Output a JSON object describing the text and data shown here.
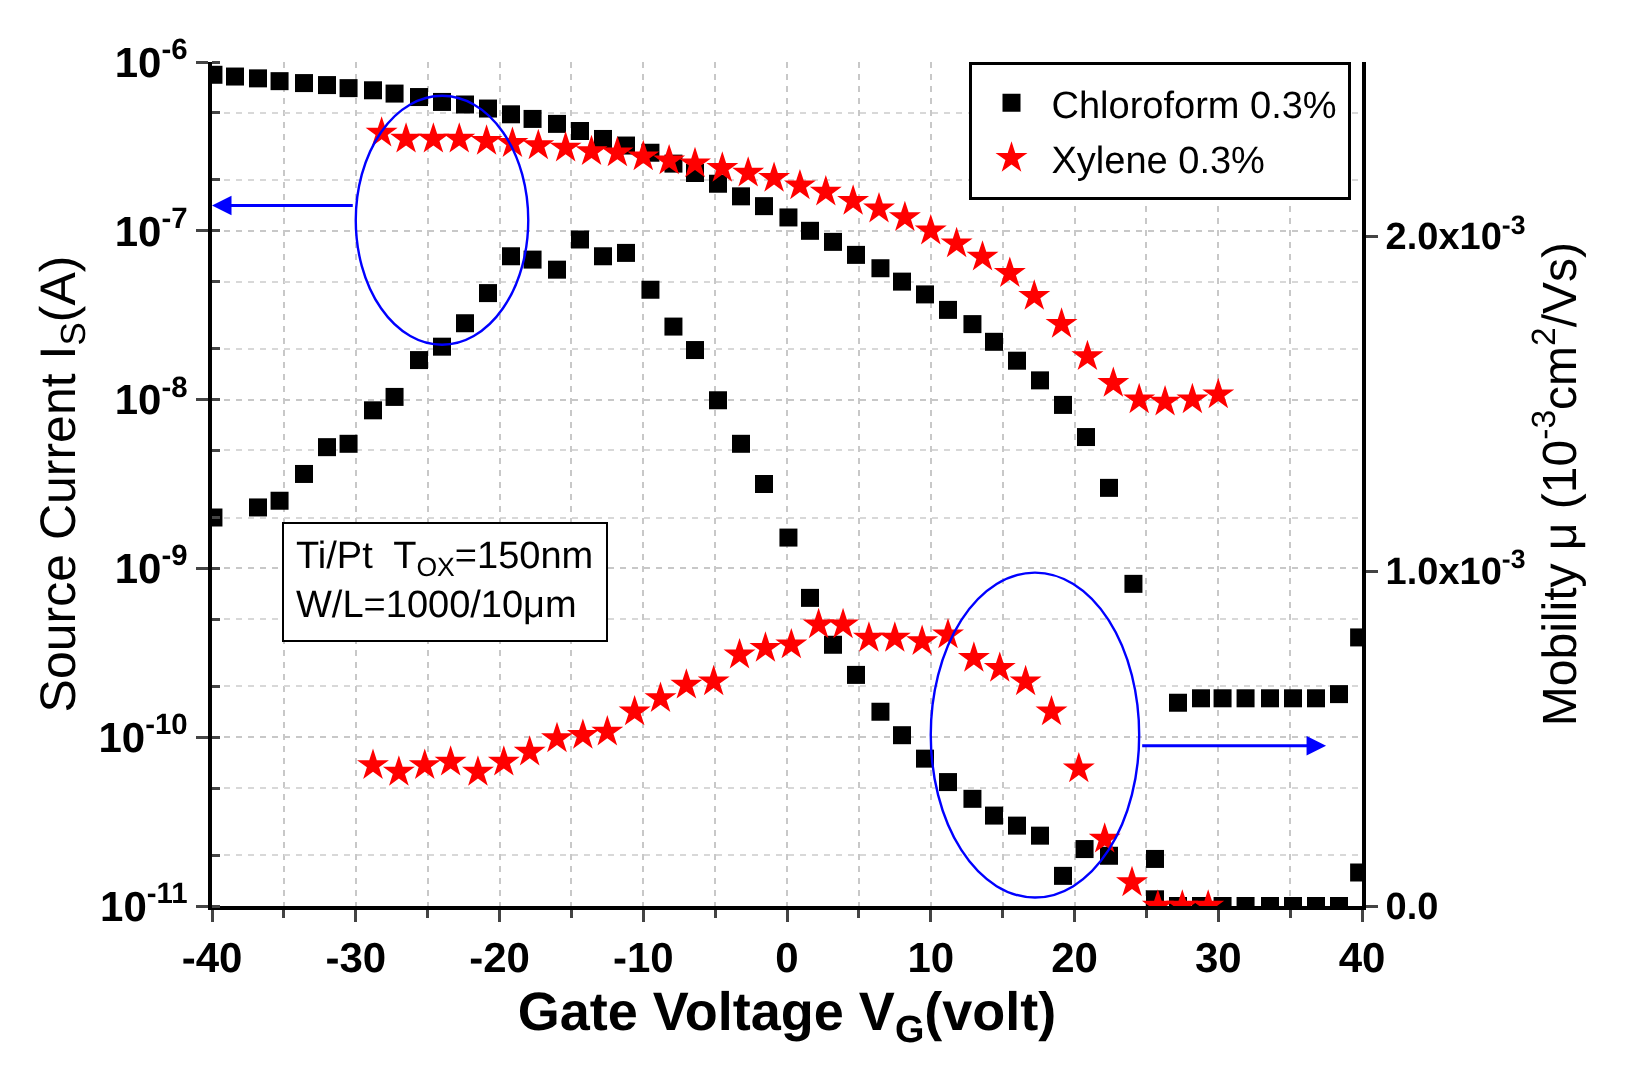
{
  "chart_data": {
    "type": "scatter",
    "xlabel": "Gate Voltage V$_{G}$(volt)",
    "ylabel": "Source Current I$_{S}$(A)",
    "y2label": "Mobility μ (10$^{-3}$cm$^{2}$/Vs)",
    "xlim": [
      -40,
      40
    ],
    "xticks": [
      -40,
      -30,
      -20,
      -10,
      0,
      10,
      20,
      30,
      40
    ],
    "ylim": [
      1e-11,
      1e-06
    ],
    "yticks": [
      {
        "value": 1e-11,
        "label": "10$^{-11}$"
      },
      {
        "value": 1e-10,
        "label": "10$^{-10}$"
      },
      {
        "value": 1e-09,
        "label": "10$^{-9}$"
      },
      {
        "value": 1e-08,
        "label": "10$^{-8}$"
      },
      {
        "value": 1e-07,
        "label": "10$^{-7}$"
      },
      {
        "value": 1e-06,
        "label": "10$^{-6}$"
      }
    ],
    "log": "y",
    "y2lim": [
      0,
      0.00252
    ],
    "y2ticks": [
      {
        "value": 0,
        "label": "0.0"
      },
      {
        "value": 0.001,
        "label": "1.0x10$^{-3}$"
      },
      {
        "value": 0.002,
        "label": "2.0x10$^{-3}$"
      }
    ],
    "grid": true,
    "legend": "top right",
    "annotations": [
      "Ti/Pt  T$_{OX}$=150nm",
      "W/L=1000/10μm"
    ],
    "series": [
      {
        "name": "Chloroform 0.3%",
        "color": "#000000",
        "marker": "square",
        "x": [
          -39.9,
          -38.4,
          -36.8,
          -35.3,
          -33.6,
          -32.0,
          -30.5,
          -28.8,
          -27.3,
          -25.6,
          -24.0,
          -22.4,
          -20.8,
          -19.2,
          -17.7,
          -16.0,
          -14.4,
          -12.8,
          -11.2,
          -9.5,
          -7.9,
          -6.4,
          -4.8,
          -3.2,
          -1.6,
          0.1,
          1.6,
          3.2,
          4.8,
          6.5,
          8.0,
          9.6,
          11.2,
          12.9,
          14.4,
          16.0,
          17.6,
          19.2,
          20.8,
          22.4,
          24.1,
          25.6,
          27.2,
          28.8,
          30.3,
          31.9,
          33.6,
          35.2,
          36.8,
          38.4,
          39.8
        ],
        "values": [
          8.4e-07,
          8.2e-07,
          8e-07,
          7.7e-07,
          7.5e-07,
          7.3e-07,
          7e-07,
          6.8e-07,
          6.5e-07,
          6.2e-07,
          5.8e-07,
          5.6e-07,
          5.3e-07,
          4.9e-07,
          4.6e-07,
          4.3e-07,
          3.9e-07,
          3.5e-07,
          3.2e-07,
          2.9e-07,
          2.5e-07,
          2.2e-07,
          1.9e-07,
          1.6e-07,
          1.4e-07,
          1.2e-07,
          1e-07,
          8.6e-08,
          7.2e-08,
          6e-08,
          5e-08,
          4.2e-08,
          3.4e-08,
          2.8e-08,
          2.2e-08,
          1.7e-08,
          1.3e-08,
          9.3e-09,
          6e-09,
          3e-09,
          8.1e-10,
          1.9e-11,
          1.6e-10,
          1.7e-10,
          1.7e-10,
          1.7e-10,
          1.7e-10,
          1.7e-10,
          1.7e-10,
          1.8e-10,
          3.9e-10
        ]
      },
      {
        "name": "Xylene 0.3%",
        "color": "#ff0000",
        "marker": "star",
        "x": [
          -28.2,
          -26.5,
          -24.6,
          -22.8,
          -20.9,
          -19.1,
          -17.3,
          -15.4,
          -13.6,
          -11.8,
          -10.0,
          -8.2,
          -6.4,
          -4.5,
          -2.7,
          -0.9,
          0.9,
          2.7,
          4.6,
          6.4,
          8.2,
          10.0,
          11.8,
          13.6,
          15.5,
          17.2,
          19.1,
          20.9,
          22.7,
          24.5,
          26.3,
          28.2,
          30.0
        ],
        "values": [
          3.8e-07,
          3.5e-07,
          3.5e-07,
          3.5e-07,
          3.4e-07,
          3.3e-07,
          3.2e-07,
          3.1e-07,
          2.95e-07,
          2.9e-07,
          2.75e-07,
          2.6e-07,
          2.5e-07,
          2.35e-07,
          2.2e-07,
          2.05e-07,
          1.85e-07,
          1.7e-07,
          1.5e-07,
          1.35e-07,
          1.2e-07,
          1e-07,
          8.4e-08,
          7e-08,
          5.6e-08,
          4.1e-08,
          2.8e-08,
          1.8e-08,
          1.25e-08,
          1e-08,
          9.7e-09,
          1e-08,
          1.07e-08
        ]
      },
      {
        "color": "#000000",
        "marker": "square",
        "axis": "y2",
        "x": [
          -39.9,
          -36.8,
          -35.3,
          -33.6,
          -32.0,
          -30.5,
          -28.8,
          -27.3,
          -25.6,
          -24.0,
          -22.4,
          -20.8,
          -19.2,
          -17.7,
          -16.0,
          -14.4,
          -12.8,
          -11.2,
          -9.5,
          -7.9,
          -6.4,
          -4.8,
          -3.2,
          -1.6,
          0.1,
          1.6,
          3.2,
          4.8,
          6.5,
          8.0,
          9.6,
          11.2,
          12.9,
          14.4,
          16.0,
          17.6,
          19.2,
          20.7,
          22.4,
          25.6,
          27.2,
          28.8,
          30.3,
          31.9,
          33.6,
          35.2,
          36.8,
          38.4,
          39.8
        ],
        "values": [
          0.00116,
          0.00119,
          0.00121,
          0.00129,
          0.00137,
          0.00138,
          0.00148,
          0.00152,
          0.00163,
          0.00167,
          0.00174,
          0.00183,
          0.00194,
          0.00193,
          0.0019,
          0.00199,
          0.00194,
          0.00195,
          0.00184,
          0.00173,
          0.00166,
          0.00151,
          0.00138,
          0.00126,
          0.0011,
          0.00092,
          0.00078,
          0.00069,
          0.00058,
          0.00051,
          0.00044,
          0.00037,
          0.00032,
          0.00027,
          0.00024,
          0.00021,
          9e-05,
          0.00017,
          0.00015,
          2e-05,
          0,
          0,
          0,
          0,
          0,
          0,
          0,
          0,
          0.0001
        ]
      },
      {
        "color": "#ff0000",
        "marker": "star",
        "axis": "y2",
        "x": [
          -28.8,
          -27.0,
          -25.2,
          -23.4,
          -21.5,
          -19.7,
          -17.9,
          -16.0,
          -14.2,
          -12.5,
          -10.6,
          -8.8,
          -7.0,
          -5.1,
          -3.3,
          -1.5,
          0.3,
          2.2,
          3.9,
          5.7,
          7.5,
          9.4,
          11.2,
          13.0,
          14.8,
          16.6,
          18.4,
          20.3,
          22.1,
          24.0,
          25.8,
          27.5,
          29.3
        ],
        "values": [
          0.00042,
          0.0004,
          0.00042,
          0.00043,
          0.0004,
          0.00043,
          0.00046,
          0.0005,
          0.00051,
          0.00052,
          0.00058,
          0.00062,
          0.00066,
          0.00067,
          0.00075,
          0.00077,
          0.00078,
          0.00084,
          0.00084,
          0.0008,
          0.0008,
          0.00079,
          0.00081,
          0.00074,
          0.00071,
          0.00067,
          0.00058,
          0.00041,
          0.0002,
          7e-05,
          0,
          0,
          0
        ]
      }
    ]
  }
}
